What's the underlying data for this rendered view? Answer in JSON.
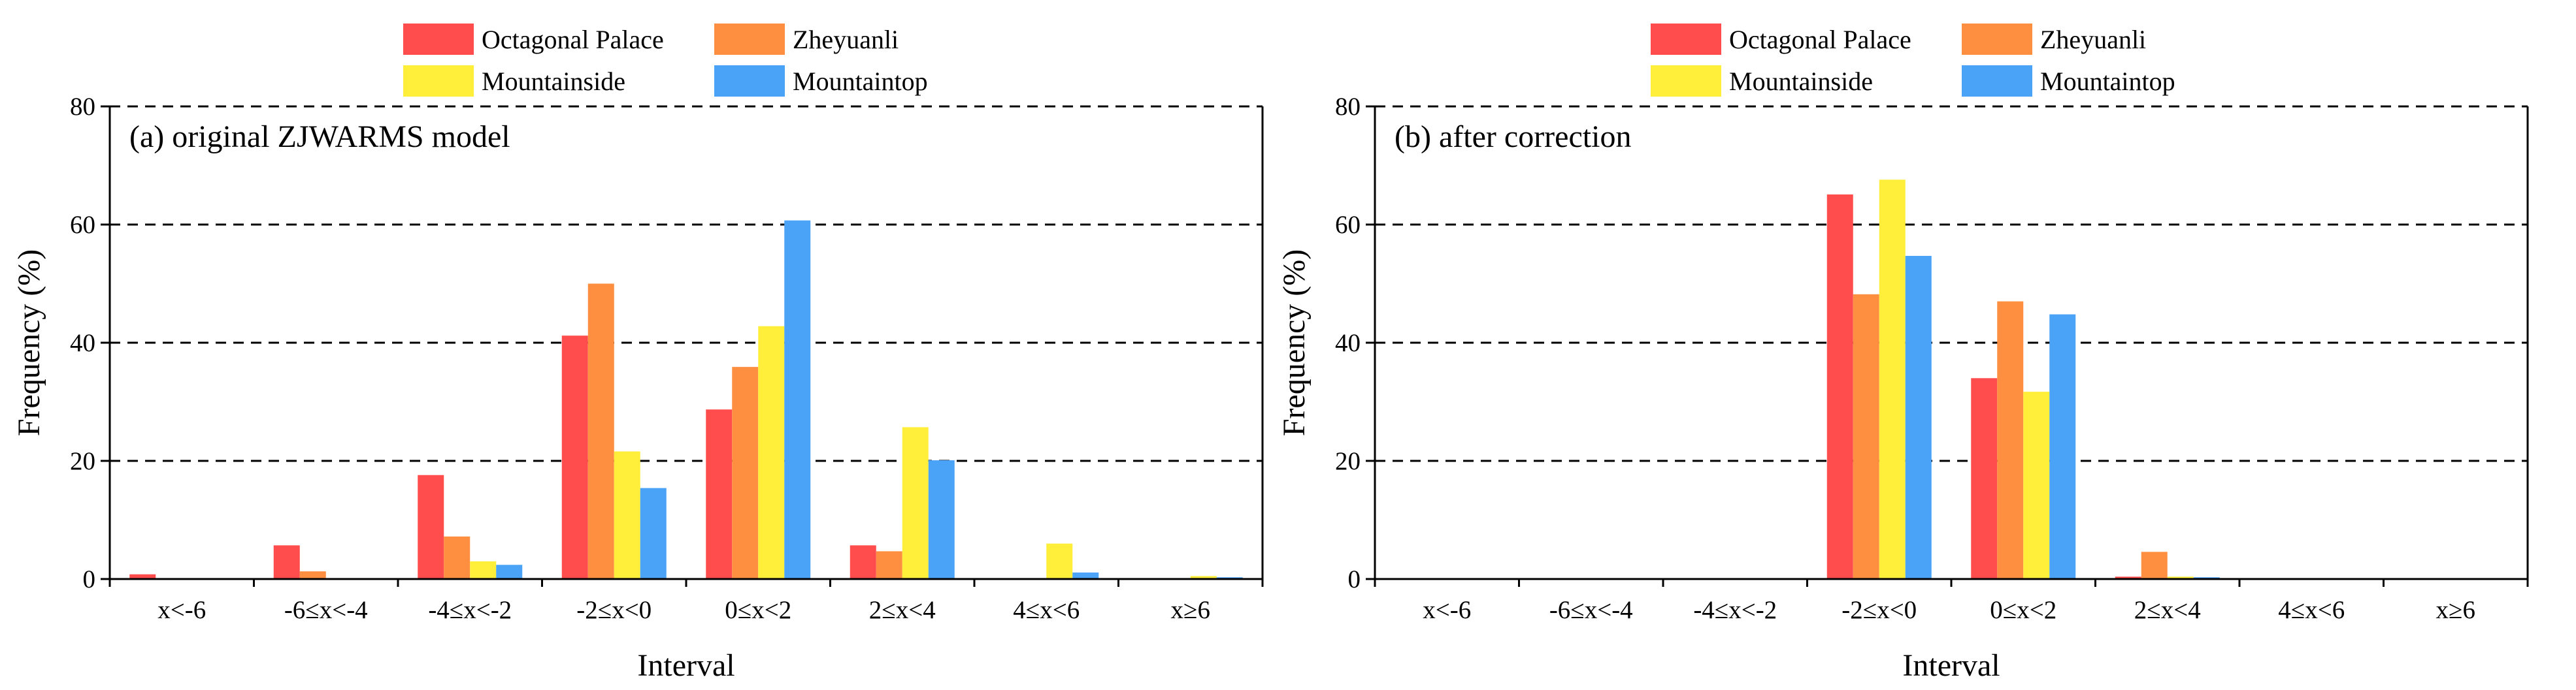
{
  "chart_data": [
    {
      "type": "bar",
      "title": "(a) original ZJWARMS model",
      "xlabel": "Interval",
      "ylabel": "Frequency (%)",
      "ylim": [
        0,
        80
      ],
      "yticks": [
        "0",
        "20",
        "40",
        "60",
        "80"
      ],
      "grid": "horizontal dashed",
      "legend": "top-center, two columns",
      "categories": [
        "x<-6",
        "-6≤x<-4",
        "-4≤x<-2",
        "-2≤x<0",
        "0≤x<2",
        "2≤x<4",
        "4≤x<6",
        "x≥6"
      ],
      "series": [
        {
          "name": "Octagonal Palace",
          "color": "#ff4d4d",
          "values": [
            0.8,
            5.7,
            17.6,
            41.2,
            28.7,
            5.7,
            0.0,
            0.0
          ]
        },
        {
          "name": "Zheyuanli",
          "color": "#ff8f40",
          "values": [
            0.0,
            1.3,
            7.2,
            50.0,
            35.9,
            4.7,
            0.0,
            0.0
          ]
        },
        {
          "name": "Mountainside",
          "color": "#ffef3a",
          "values": [
            0.0,
            0.0,
            3.0,
            21.6,
            42.8,
            25.7,
            6.0,
            0.5
          ]
        },
        {
          "name": "Mountaintop",
          "color": "#4aa3f7",
          "values": [
            0.0,
            0.0,
            2.4,
            15.4,
            60.7,
            20.1,
            1.1,
            0.3
          ]
        }
      ]
    },
    {
      "type": "bar",
      "title": "(b) after correction",
      "xlabel": "Interval",
      "ylabel": "Frequency (%)",
      "ylim": [
        0,
        80
      ],
      "yticks": [
        "0",
        "20",
        "40",
        "60",
        "80"
      ],
      "grid": "horizontal dashed",
      "legend": "top-center, two columns",
      "categories": [
        "x<-6",
        "-6≤x<-4",
        "-4≤x<-2",
        "-2≤x<0",
        "0≤x<2",
        "2≤x<4",
        "4≤x<6",
        "x≥6"
      ],
      "series": [
        {
          "name": "Octagonal Palace",
          "color": "#ff4d4d",
          "values": [
            0.0,
            0.0,
            0.0,
            65.1,
            34.0,
            0.4,
            0.0,
            0.0
          ]
        },
        {
          "name": "Zheyuanli",
          "color": "#ff8f40",
          "values": [
            0.0,
            0.0,
            0.0,
            48.2,
            47.0,
            4.6,
            0.0,
            0.0
          ]
        },
        {
          "name": "Mountainside",
          "color": "#ffef3a",
          "values": [
            0.0,
            0.0,
            0.0,
            67.6,
            31.7,
            0.4,
            0.0,
            0.0
          ]
        },
        {
          "name": "Mountaintop",
          "color": "#4aa3f7",
          "values": [
            0.0,
            0.0,
            0.0,
            54.7,
            44.8,
            0.3,
            0.0,
            0.0
          ]
        }
      ]
    }
  ]
}
